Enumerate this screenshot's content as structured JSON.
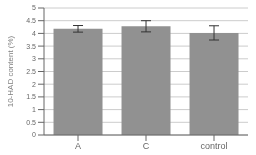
{
  "chart_data": {
    "type": "bar",
    "ylabel": "10-HAD content (%)",
    "categories": [
      "A",
      "C",
      "control"
    ],
    "values": [
      4.18,
      4.28,
      4.02
    ],
    "errors": [
      0.13,
      0.22,
      0.28
    ],
    "color": "#919191",
    "ylim": [
      0,
      5
    ],
    "yticks": [
      0,
      0.5,
      1,
      1.5,
      2,
      2.5,
      3,
      3.5,
      4,
      4.5,
      5
    ],
    "grid": true
  }
}
